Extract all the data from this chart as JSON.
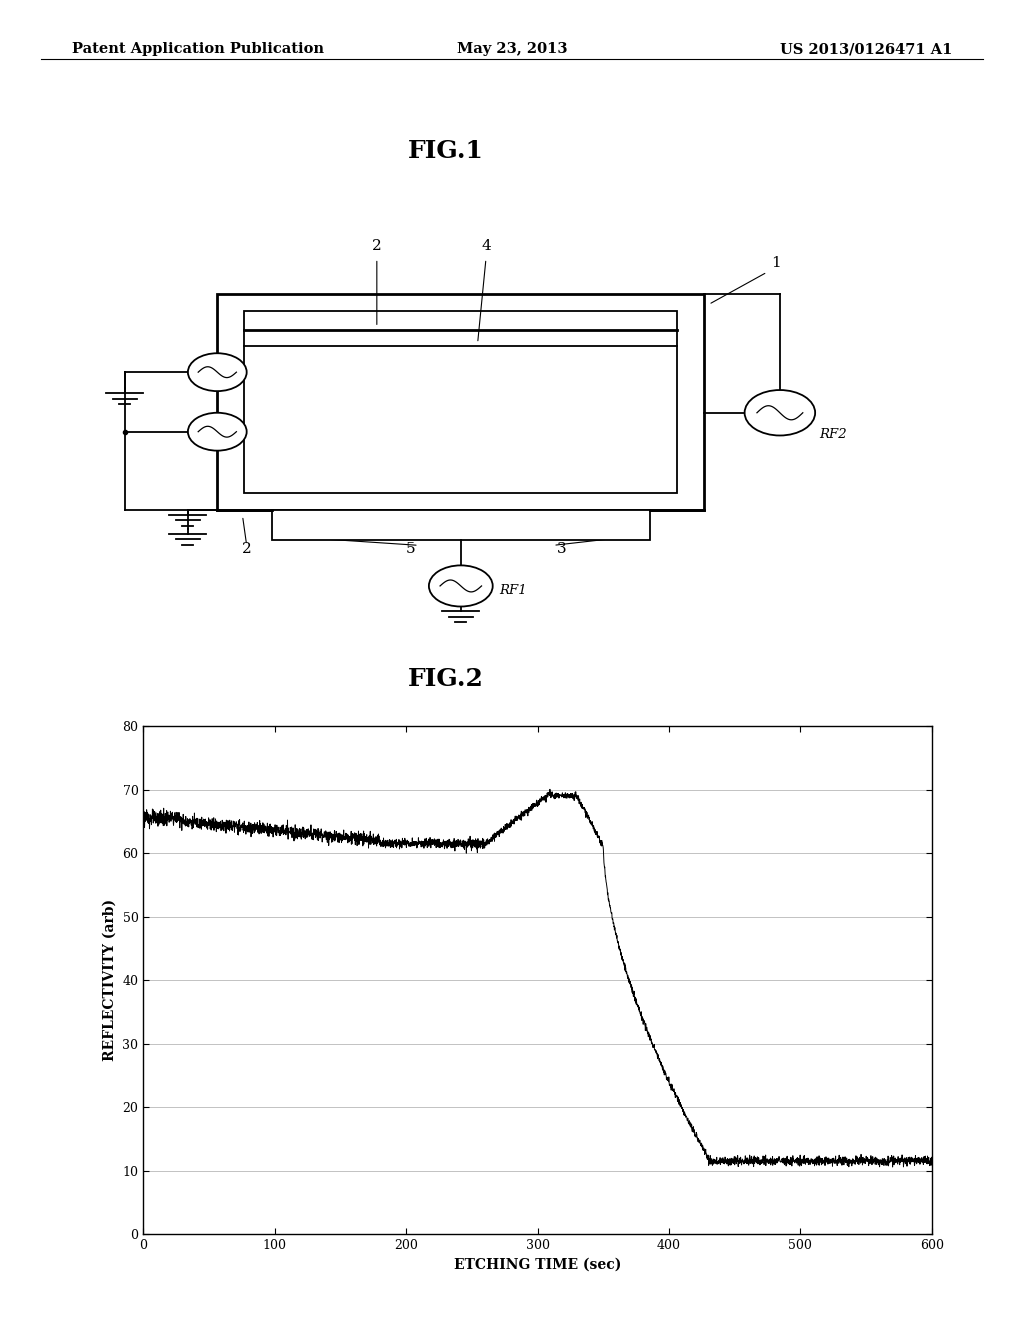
{
  "header_left": "Patent Application Publication",
  "header_center": "May 23, 2013",
  "header_right": "US 2013/0126471 A1",
  "fig1_title": "FIG.1",
  "fig2_title": "FIG.2",
  "fig2_xlabel": "ETCHING TIME (sec)",
  "fig2_ylabel": "REFLECTIVITY (arb)",
  "fig2_xlim": [
    0,
    600
  ],
  "fig2_ylim": [
    0,
    80
  ],
  "fig2_xticks": [
    0,
    100,
    200,
    300,
    400,
    500,
    600
  ],
  "fig2_yticks": [
    0,
    10,
    20,
    30,
    40,
    50,
    60,
    70,
    80
  ],
  "background_color": "#ffffff",
  "line_color": "#000000",
  "header_fontsize": 10.5,
  "fig_title_fontsize": 18,
  "label_fontsize": 10,
  "tick_fontsize": 9
}
